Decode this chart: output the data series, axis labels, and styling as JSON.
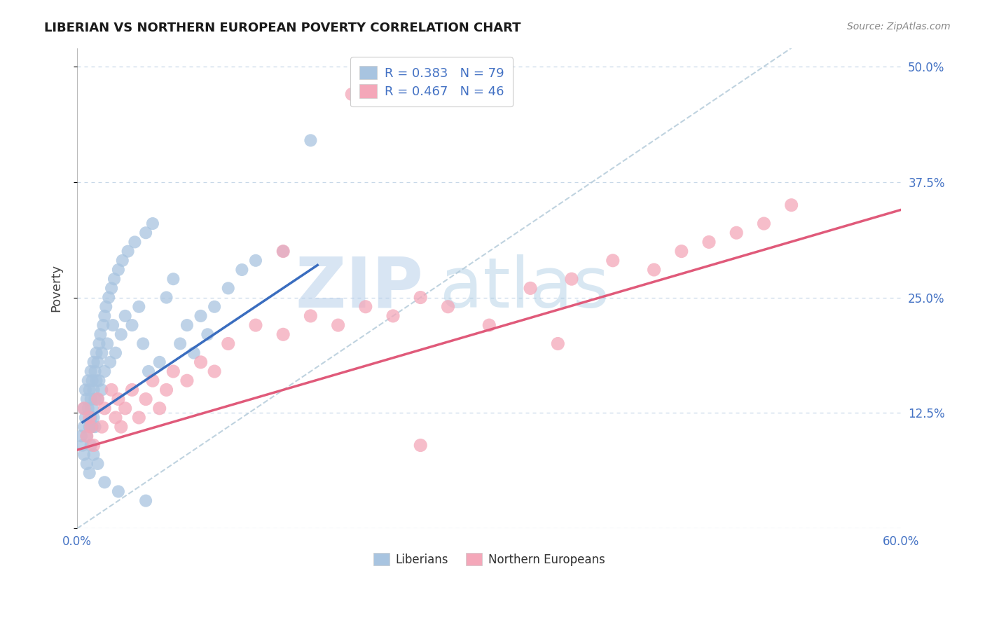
{
  "title": "LIBERIAN VS NORTHERN EUROPEAN POVERTY CORRELATION CHART",
  "source": "Source: ZipAtlas.com",
  "ylabel": "Poverty",
  "xlim": [
    0.0,
    0.6
  ],
  "ylim": [
    0.0,
    0.52
  ],
  "xticks": [
    0.0,
    0.1,
    0.2,
    0.3,
    0.4,
    0.5,
    0.6
  ],
  "xticklabels": [
    "0.0%",
    "",
    "",
    "",
    "",
    "",
    "60.0%"
  ],
  "yticks": [
    0.0,
    0.125,
    0.25,
    0.375,
    0.5
  ],
  "yticklabels": [
    "",
    "12.5%",
    "25.0%",
    "37.5%",
    "50.0%"
  ],
  "liberian_R": 0.383,
  "liberian_N": 79,
  "northern_european_R": 0.467,
  "northern_european_N": 46,
  "liberian_color": "#a8c4e0",
  "northern_european_color": "#f4a7b9",
  "liberian_line_color": "#3a6dbf",
  "northern_european_line_color": "#e05a7a",
  "dashed_line_color": "#b0c8d8",
  "tick_color": "#4472c4",
  "grid_color": "#c8d8e8",
  "background_color": "#ffffff",
  "liberian_x": [
    0.003,
    0.004,
    0.005,
    0.005,
    0.006,
    0.006,
    0.007,
    0.007,
    0.008,
    0.008,
    0.009,
    0.009,
    0.01,
    0.01,
    0.01,
    0.01,
    0.011,
    0.011,
    0.011,
    0.012,
    0.012,
    0.012,
    0.013,
    0.013,
    0.013,
    0.014,
    0.014,
    0.015,
    0.015,
    0.016,
    0.016,
    0.017,
    0.018,
    0.018,
    0.019,
    0.02,
    0.02,
    0.021,
    0.022,
    0.023,
    0.024,
    0.025,
    0.026,
    0.027,
    0.028,
    0.03,
    0.032,
    0.033,
    0.035,
    0.037,
    0.04,
    0.042,
    0.045,
    0.048,
    0.05,
    0.052,
    0.055,
    0.06,
    0.065,
    0.07,
    0.075,
    0.08,
    0.085,
    0.09,
    0.095,
    0.1,
    0.11,
    0.12,
    0.13,
    0.15,
    0.17,
    0.005,
    0.007,
    0.009,
    0.012,
    0.015,
    0.02,
    0.03,
    0.05
  ],
  "liberian_y": [
    0.1,
    0.09,
    0.13,
    0.11,
    0.15,
    0.12,
    0.14,
    0.1,
    0.16,
    0.13,
    0.15,
    0.11,
    0.17,
    0.14,
    0.12,
    0.09,
    0.16,
    0.13,
    0.11,
    0.18,
    0.15,
    0.12,
    0.17,
    0.14,
    0.11,
    0.19,
    0.16,
    0.18,
    0.14,
    0.2,
    0.16,
    0.21,
    0.19,
    0.15,
    0.22,
    0.23,
    0.17,
    0.24,
    0.2,
    0.25,
    0.18,
    0.26,
    0.22,
    0.27,
    0.19,
    0.28,
    0.21,
    0.29,
    0.23,
    0.3,
    0.22,
    0.31,
    0.24,
    0.2,
    0.32,
    0.17,
    0.33,
    0.18,
    0.25,
    0.27,
    0.2,
    0.22,
    0.19,
    0.23,
    0.21,
    0.24,
    0.26,
    0.28,
    0.29,
    0.3,
    0.42,
    0.08,
    0.07,
    0.06,
    0.08,
    0.07,
    0.05,
    0.04,
    0.03
  ],
  "northern_x": [
    0.005,
    0.007,
    0.009,
    0.01,
    0.012,
    0.015,
    0.018,
    0.02,
    0.025,
    0.028,
    0.03,
    0.032,
    0.035,
    0.04,
    0.045,
    0.05,
    0.055,
    0.06,
    0.065,
    0.07,
    0.08,
    0.09,
    0.1,
    0.11,
    0.13,
    0.15,
    0.17,
    0.19,
    0.21,
    0.23,
    0.25,
    0.27,
    0.3,
    0.33,
    0.36,
    0.39,
    0.42,
    0.44,
    0.46,
    0.48,
    0.5,
    0.52,
    0.2,
    0.35,
    0.15,
    0.25
  ],
  "northern_y": [
    0.13,
    0.1,
    0.12,
    0.11,
    0.09,
    0.14,
    0.11,
    0.13,
    0.15,
    0.12,
    0.14,
    0.11,
    0.13,
    0.15,
    0.12,
    0.14,
    0.16,
    0.13,
    0.15,
    0.17,
    0.16,
    0.18,
    0.17,
    0.2,
    0.22,
    0.21,
    0.23,
    0.22,
    0.24,
    0.23,
    0.25,
    0.24,
    0.22,
    0.26,
    0.27,
    0.29,
    0.28,
    0.3,
    0.31,
    0.32,
    0.33,
    0.35,
    0.47,
    0.2,
    0.3,
    0.09
  ],
  "lib_line_x": [
    0.004,
    0.175
  ],
  "lib_line_y": [
    0.115,
    0.285
  ],
  "nor_line_x": [
    0.0,
    0.6
  ],
  "nor_line_y": [
    0.085,
    0.345
  ]
}
